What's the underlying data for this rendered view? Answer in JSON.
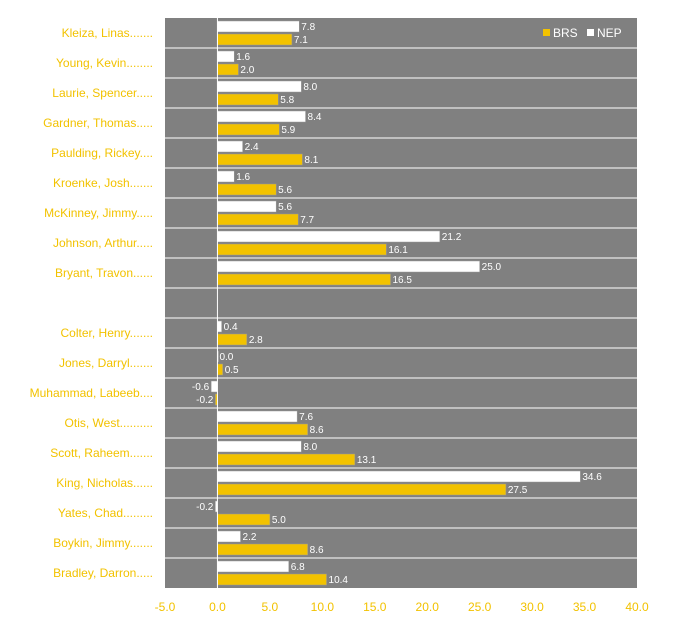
{
  "chart_data": {
    "type": "bar",
    "orientation": "horizontal",
    "categories": [
      "Kleiza, Linas.......",
      "Young, Kevin........",
      "Laurie, Spencer.....",
      "Gardner, Thomas.....",
      "Paulding, Rickey....",
      "Kroenke, Josh.......",
      "McKinney, Jimmy.....",
      "Johnson, Arthur.....",
      "Bryant, Travon......",
      "",
      "Colter, Henry.......",
      "Jones, Darryl.......",
      "Muhammad, Labeeb....",
      "Otis, West..........",
      "Scott, Raheem.......",
      "King, Nicholas......",
      "Yates, Chad.........",
      "Boykin, Jimmy.......",
      "Bradley, Darron....."
    ],
    "series": [
      {
        "name": "NEP",
        "color": "#ffffff",
        "values": [
          7.8,
          1.6,
          8.0,
          8.4,
          2.4,
          1.6,
          5.6,
          21.2,
          25.0,
          null,
          0.4,
          0.0,
          -0.6,
          7.6,
          8.0,
          34.6,
          -0.2,
          2.2,
          6.8
        ],
        "labels": [
          "7.8",
          "1.6",
          "8.0",
          "8.4",
          "2.4",
          "1.6",
          "5.6",
          "21.2",
          "25.0",
          "",
          "0.4",
          "0.0",
          "-0.6",
          "7.6",
          "8.0",
          "34.6",
          "-0.2",
          "2.2",
          "6.8"
        ]
      },
      {
        "name": "BRS",
        "color": "#f2c200",
        "values": [
          7.1,
          2.0,
          5.8,
          5.9,
          8.1,
          5.6,
          7.7,
          16.1,
          16.5,
          null,
          2.8,
          0.5,
          -0.2,
          8.6,
          13.1,
          27.5,
          5.0,
          8.6,
          10.4
        ],
        "labels": [
          "7.1",
          "2.0",
          "5.8",
          "5.9",
          "8.1",
          "5.6",
          "7.7",
          "16.1",
          "16.5",
          "",
          "2.8",
          "0.5",
          "-0.2",
          "8.6",
          "13.1",
          "27.5",
          "5.0",
          "8.6",
          "10.4"
        ]
      }
    ],
    "xlim": [
      -5,
      40
    ],
    "x_ticks": [
      -5,
      0,
      5,
      10,
      15,
      20,
      25,
      30,
      35,
      40
    ],
    "x_tick_labels": [
      "-5.0",
      "0.0",
      "5.0",
      "10.0",
      "15.0",
      "20.0",
      "25.0",
      "30.0",
      "35.0",
      "40.0"
    ],
    "legend": {
      "position": "top-right",
      "entries": [
        {
          "name": "BRS",
          "color": "#f2c200"
        },
        {
          "name": "NEP",
          "color": "#ffffff"
        }
      ]
    },
    "plot_background": "#808080",
    "label_color": "#f2c200",
    "title": "",
    "xlabel": "",
    "ylabel": ""
  }
}
